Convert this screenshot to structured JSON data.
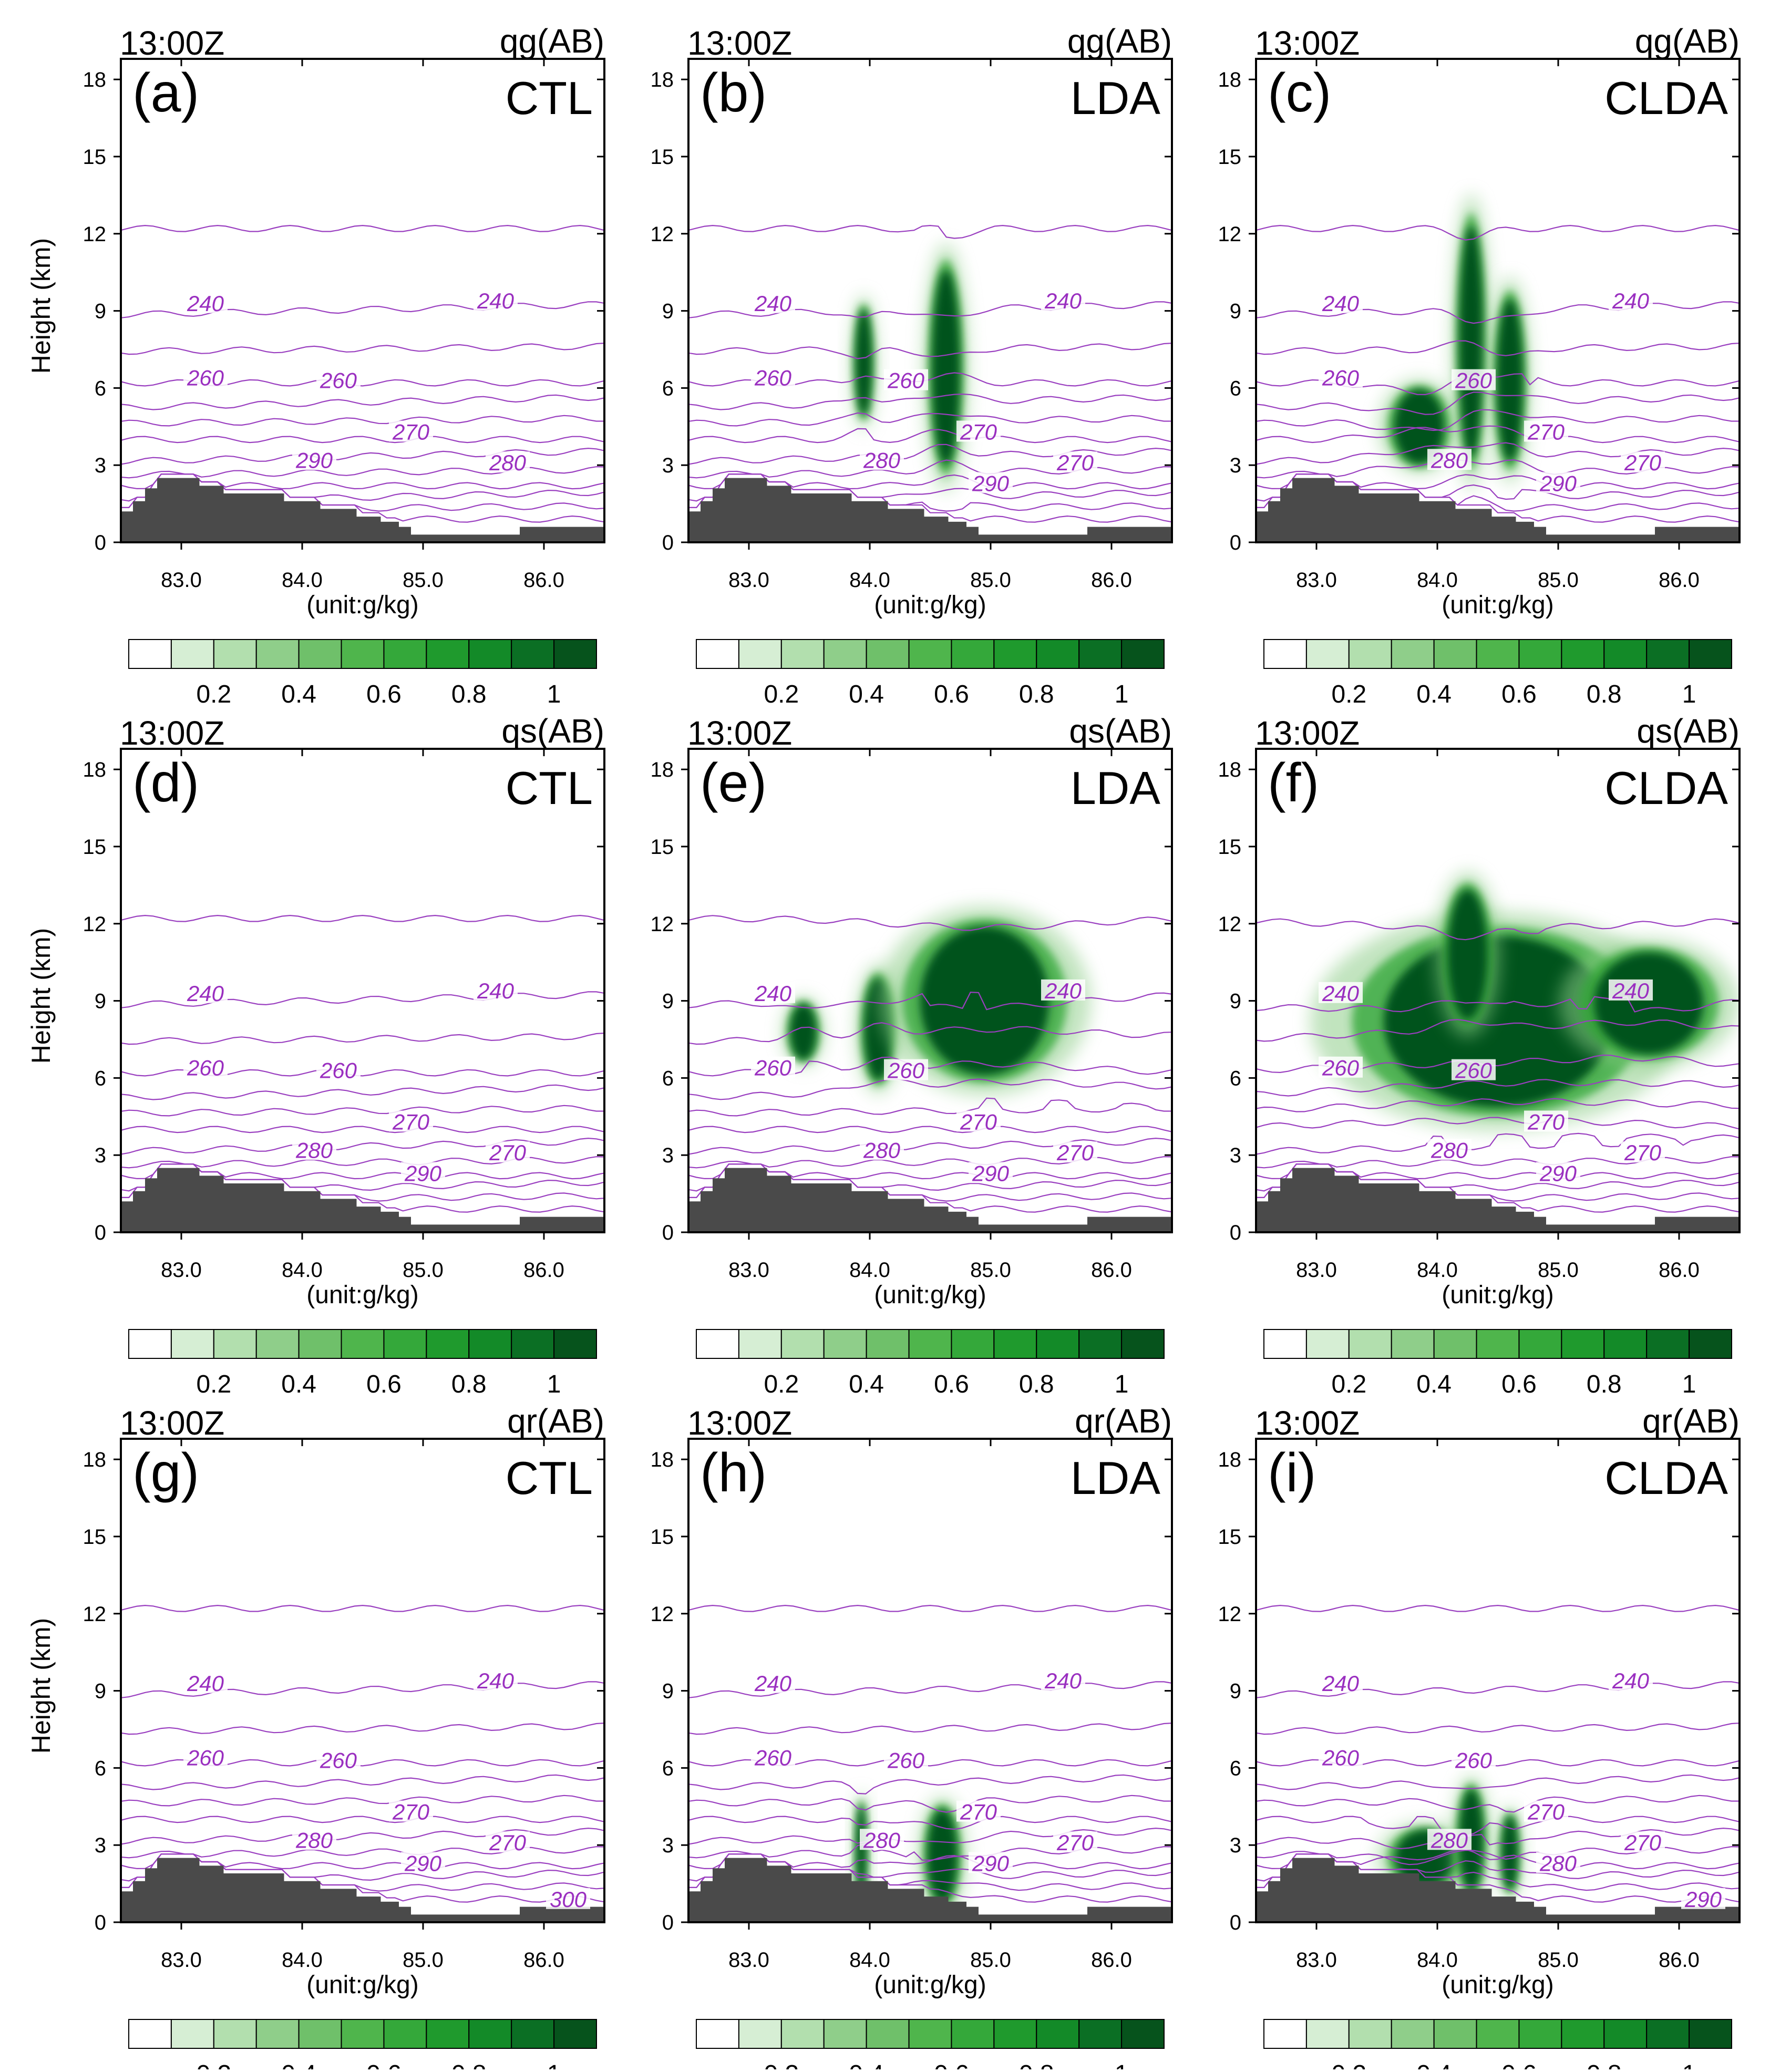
{
  "figure": {
    "time_label": "13:00Z",
    "x_unit_label": "(unit:g/kg)",
    "y_axis_label": "Height (km)",
    "x_ticks": [
      "83.0",
      "84.0",
      "85.0",
      "86.0"
    ],
    "y_ticks": [
      "0",
      "3",
      "6",
      "9",
      "12",
      "15",
      "18"
    ],
    "colorbar_ticks": [
      "0.2",
      "0.4",
      "0.6",
      "0.8",
      "1"
    ],
    "colors": {
      "terrain": "#4a4a4a",
      "contour": "#9a3fc0",
      "contour_label": "#9a2fc0",
      "colorbar": [
        "#ffffff",
        "#d6eed4",
        "#b2dfae",
        "#8fce8a",
        "#6fc06a",
        "#4fb54c",
        "#34a83a",
        "#1f9a2d",
        "#138a28",
        "#0b6f24",
        "#06531c"
      ]
    }
  },
  "chart_data": [
    {
      "id": "a",
      "panel_label": "(a)",
      "variable": "qg(AB)",
      "experiment": "CTL",
      "type": "contour",
      "xlim": [
        82.5,
        86.5
      ],
      "ylim": [
        0,
        18.8
      ],
      "contour_labels": [
        "240",
        "240",
        "260",
        "260",
        "270",
        "280",
        "290"
      ],
      "colorbar": {
        "min": 0,
        "max": 1.1,
        "step": 0.1
      }
    },
    {
      "id": "b",
      "panel_label": "(b)",
      "variable": "qg(AB)",
      "experiment": "LDA",
      "type": "contour",
      "xlim": [
        82.5,
        86.5
      ],
      "ylim": [
        0,
        18.8
      ],
      "contour_labels": [
        "240",
        "240",
        "260",
        "260",
        "270",
        "270",
        "280",
        "290"
      ],
      "shading": [
        {
          "x": 83.95,
          "y": 7.0,
          "wx": 0.08,
          "hy": 2.3
        },
        {
          "x": 84.63,
          "y": 6.8,
          "wx": 0.14,
          "hy": 4.2
        }
      ],
      "colorbar": {
        "min": 0,
        "max": 1.1,
        "step": 0.1
      }
    },
    {
      "id": "c",
      "panel_label": "(c)",
      "variable": "qg(AB)",
      "experiment": "CLDA",
      "type": "contour",
      "xlim": [
        82.5,
        86.5
      ],
      "ylim": [
        0,
        18.8
      ],
      "contour_labels": [
        "240",
        "240",
        "260",
        "260",
        "270",
        "270",
        "280",
        "290"
      ],
      "shading": [
        {
          "x": 83.85,
          "y": 4.5,
          "wx": 0.25,
          "hy": 1.6
        },
        {
          "x": 84.28,
          "y": 7.8,
          "wx": 0.12,
          "hy": 5.0
        },
        {
          "x": 84.6,
          "y": 6.3,
          "wx": 0.13,
          "hy": 3.5
        }
      ],
      "colorbar": {
        "min": 0,
        "max": 1.1,
        "step": 0.1
      }
    },
    {
      "id": "d",
      "panel_label": "(d)",
      "variable": "qs(AB)",
      "experiment": "CTL",
      "type": "contour",
      "xlim": [
        82.5,
        86.5
      ],
      "ylim": [
        0,
        18.8
      ],
      "contour_labels": [
        "240",
        "240",
        "260",
        "260",
        "270",
        "270",
        "280",
        "290"
      ],
      "colorbar": {
        "min": 0,
        "max": 1.1,
        "step": 0.1
      }
    },
    {
      "id": "e",
      "panel_label": "(e)",
      "variable": "qs(AB)",
      "experiment": "LDA",
      "type": "contour",
      "xlim": [
        82.5,
        86.5
      ],
      "ylim": [
        0,
        18.8
      ],
      "contour_labels": [
        "240",
        "240",
        "260",
        "260",
        "270",
        "270",
        "280",
        "290"
      ],
      "shading": [
        {
          "x": 83.45,
          "y": 7.8,
          "wx": 0.13,
          "hy": 1.2
        },
        {
          "x": 84.07,
          "y": 7.9,
          "wx": 0.14,
          "hy": 2.2
        },
        {
          "x": 84.95,
          "y": 9.0,
          "wx": 0.65,
          "hy": 3.2
        }
      ],
      "colorbar": {
        "min": 0,
        "max": 1.1,
        "step": 0.1
      }
    },
    {
      "id": "f",
      "panel_label": "(f)",
      "variable": "qs(AB)",
      "experiment": "CLDA",
      "type": "contour",
      "xlim": [
        82.5,
        86.5
      ],
      "ylim": [
        0,
        18.8
      ],
      "contour_labels": [
        "240",
        "240",
        "260",
        "260",
        "270",
        "270",
        "280",
        "290"
      ],
      "shading": [
        {
          "x": 84.5,
          "y": 8.2,
          "wx": 1.15,
          "hy": 3.7
        },
        {
          "x": 84.25,
          "y": 10.8,
          "wx": 0.2,
          "hy": 2.8
        },
        {
          "x": 85.75,
          "y": 8.9,
          "wx": 0.55,
          "hy": 2.2
        }
      ],
      "colorbar": {
        "min": 0,
        "max": 1.1,
        "step": 0.1
      }
    },
    {
      "id": "g",
      "panel_label": "(g)",
      "variable": "qr(AB)",
      "experiment": "CTL",
      "type": "contour",
      "xlim": [
        82.5,
        86.5
      ],
      "ylim": [
        0,
        18.8
      ],
      "contour_labels": [
        "240",
        "240",
        "260",
        "260",
        "270",
        "270",
        "280",
        "290",
        "300"
      ],
      "colorbar": {
        "min": 0,
        "max": 1.1,
        "step": 0.1
      }
    },
    {
      "id": "h",
      "panel_label": "(h)",
      "variable": "qr(AB)",
      "experiment": "LDA",
      "type": "contour",
      "xlim": [
        82.5,
        86.5
      ],
      "ylim": [
        0,
        18.8
      ],
      "contour_labels": [
        "240",
        "240",
        "260",
        "260",
        "270",
        "270",
        "280",
        "290"
      ],
      "shading": [
        {
          "x": 83.93,
          "y": 2.8,
          "wx": 0.05,
          "hy": 2.0
        },
        {
          "x": 84.6,
          "y": 2.6,
          "wx": 0.15,
          "hy": 2.0
        }
      ],
      "colorbar": {
        "min": 0,
        "max": 1.1,
        "step": 0.1
      }
    },
    {
      "id": "i",
      "panel_label": "(i)",
      "variable": "qr(AB)",
      "experiment": "CLDA",
      "type": "contour",
      "xlim": [
        82.5,
        86.5
      ],
      "ylim": [
        0,
        18.8
      ],
      "contour_labels": [
        "240",
        "240",
        "260",
        "260",
        "270",
        "270",
        "280",
        "280",
        "290"
      ],
      "shading": [
        {
          "x": 83.9,
          "y": 2.5,
          "wx": 0.3,
          "hy": 1.2
        },
        {
          "x": 84.28,
          "y": 3.2,
          "wx": 0.12,
          "hy": 2.2
        },
        {
          "x": 84.6,
          "y": 2.7,
          "wx": 0.08,
          "hy": 1.6
        }
      ],
      "colorbar": {
        "min": 0,
        "max": 1.1,
        "step": 0.1
      }
    }
  ]
}
